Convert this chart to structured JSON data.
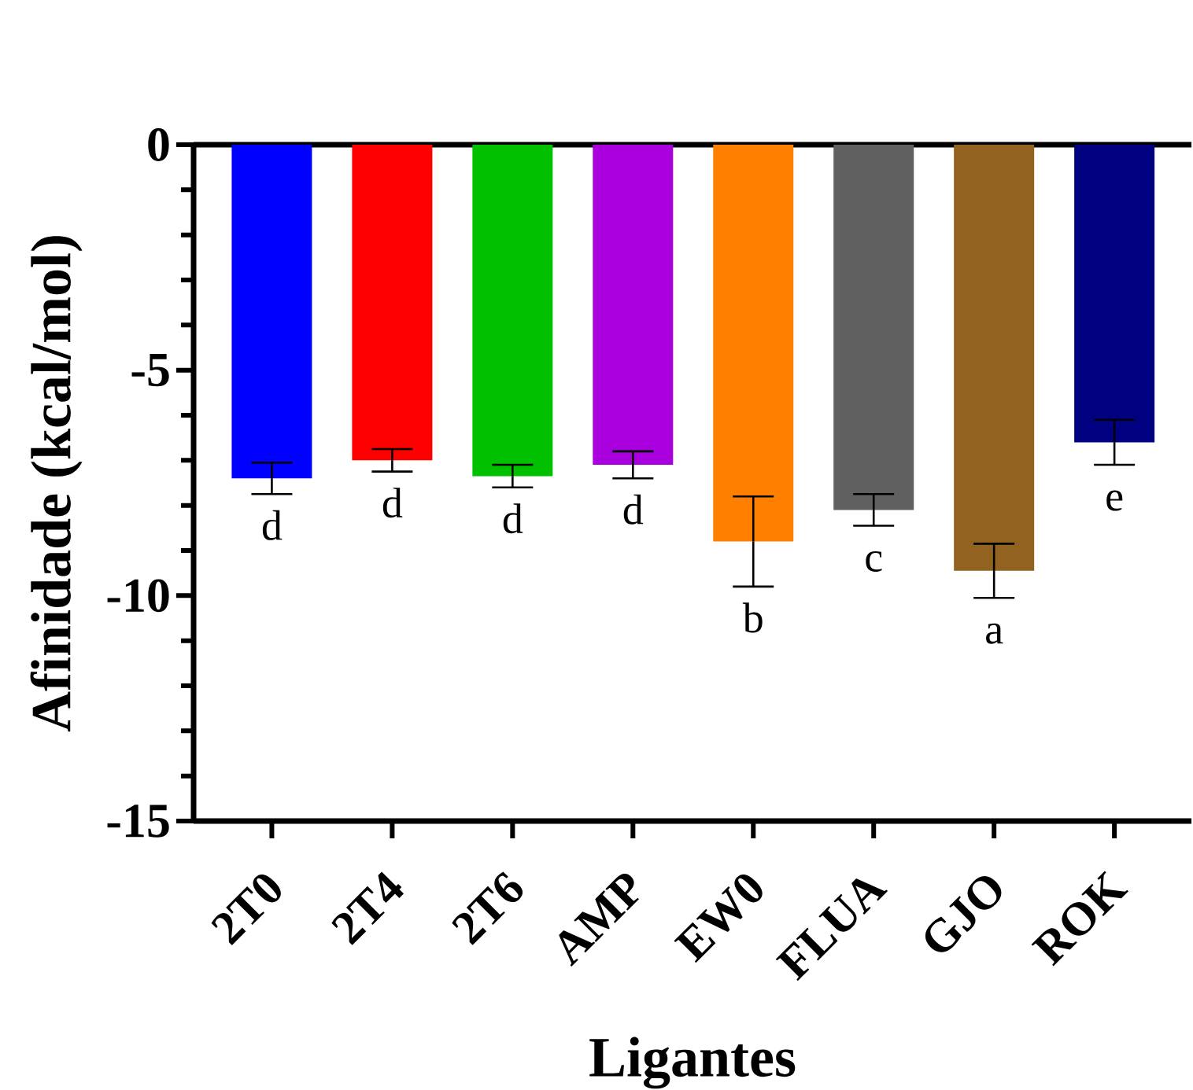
{
  "chart_data": {
    "type": "bar",
    "xlabel": "Ligantes",
    "ylabel": "Afinidade (kcal/mol)",
    "categories": [
      "2T0",
      "2T4",
      "2T6",
      "AMP",
      "EW0",
      "FLUA",
      "GJO",
      "ROK"
    ],
    "values": [
      -7.4,
      -7.0,
      -7.35,
      -7.1,
      -8.8,
      -8.1,
      -9.45,
      -6.6
    ],
    "errors": [
      0.35,
      0.25,
      0.25,
      0.3,
      1.0,
      0.35,
      0.6,
      0.5
    ],
    "colors": [
      "#0000ff",
      "#ff0000",
      "#00c000",
      "#aa00dd",
      "#ff8000",
      "#606060",
      "#926220",
      "#000080"
    ],
    "ylim": [
      -15,
      0
    ],
    "yticks": [
      -15,
      {
        "value": -14,
        "label": null
      },
      {
        "value": -13,
        "label": null
      },
      {
        "value": -12,
        "label": null
      },
      {
        "value": -11,
        "label": null
      },
      -10,
      {
        "value": -9,
        "label": null
      },
      {
        "value": -8,
        "label": null
      },
      {
        "value": -7,
        "label": null
      },
      {
        "value": -6,
        "label": null
      },
      -5,
      {
        "value": -4,
        "label": null
      },
      {
        "value": -3,
        "label": null
      },
      {
        "value": -2,
        "label": null
      },
      {
        "value": -1,
        "label": null
      },
      0
    ],
    "annotations": [
      "d",
      "d",
      "d",
      "d",
      "b",
      "c",
      "a",
      "e"
    ]
  }
}
